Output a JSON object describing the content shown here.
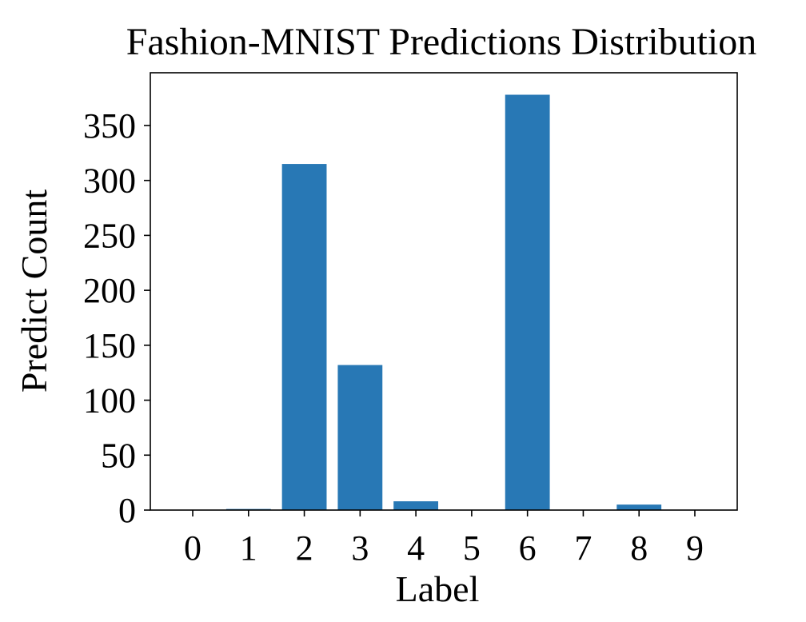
{
  "chart_data": {
    "type": "bar",
    "title": "Fashion-MNIST Predictions Distribution",
    "xlabel": "Label",
    "ylabel": "Predict Count",
    "categories": [
      "0",
      "1",
      "2",
      "3",
      "4",
      "5",
      "6",
      "7",
      "8",
      "9"
    ],
    "values": [
      0,
      1,
      315,
      132,
      8,
      0,
      378,
      0,
      5,
      0
    ],
    "ylim": [
      0,
      398
    ],
    "yticks": [
      0,
      50,
      100,
      150,
      200,
      250,
      300,
      350
    ],
    "grid": false,
    "bar_color": "#2878b5"
  }
}
